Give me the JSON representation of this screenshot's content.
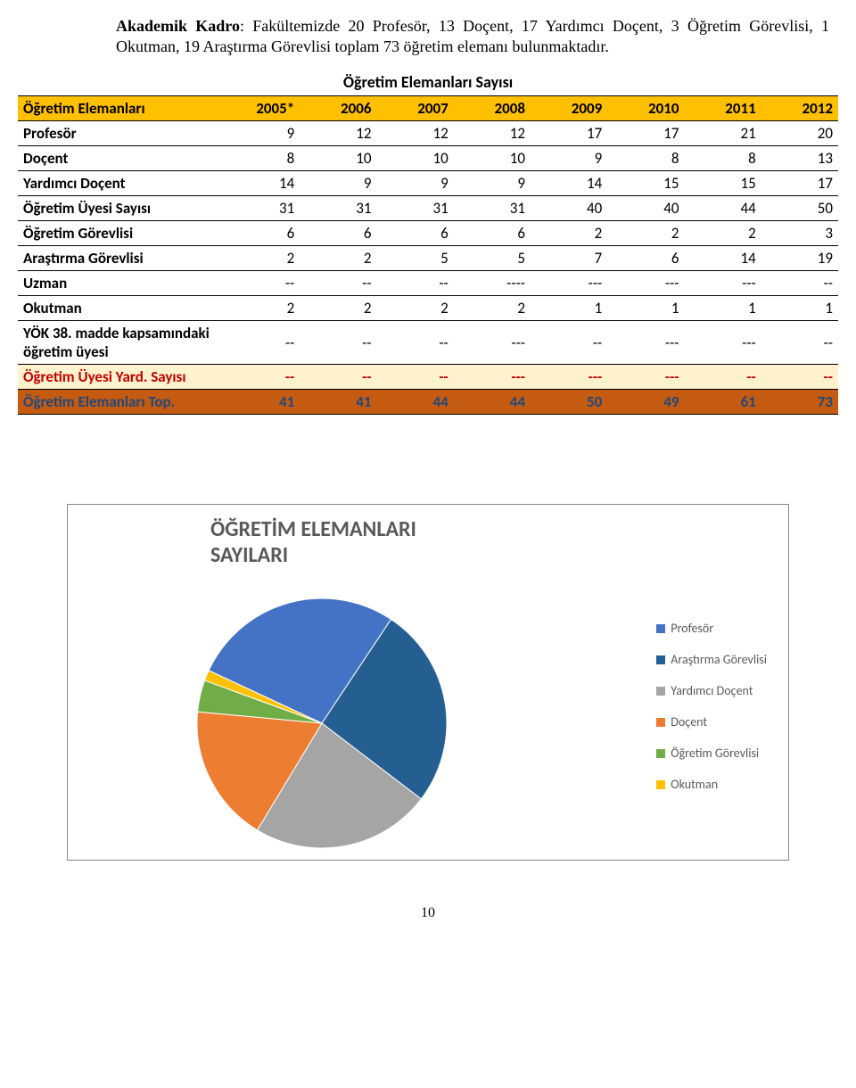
{
  "intro": {
    "label": "Akademik Kadro",
    "text": ": Fakültemizde 20 Profesör, 13 Doçent, 17 Yardımcı Doçent, 3 Öğretim Görevlisi, 1 Okutman, 19 Araştırma Görevlisi toplam 73 öğretim elemanı bulunmaktadır."
  },
  "table": {
    "title": "Öğretim Elemanları Sayısı",
    "header_label": "Öğretim Elemanları",
    "years": [
      "2005*",
      "2006",
      "2007",
      "2008",
      "2009",
      "2010",
      "2011",
      "2012"
    ],
    "rows": [
      {
        "label": "Profesör",
        "cells": [
          "9",
          "12",
          "12",
          "12",
          "17",
          "17",
          "21",
          "20"
        ]
      },
      {
        "label": "Doçent",
        "cells": [
          "8",
          "10",
          "10",
          "10",
          "9",
          "8",
          "8",
          "13"
        ]
      },
      {
        "label": "Yardımcı Doçent",
        "cells": [
          "14",
          "9",
          "9",
          "9",
          "14",
          "15",
          "15",
          "17"
        ]
      },
      {
        "label": "Öğretim Üyesi Sayısı",
        "cells": [
          "31",
          "31",
          "31",
          "31",
          "40",
          "40",
          "44",
          "50"
        ]
      },
      {
        "label": "Öğretim Görevlisi",
        "cells": [
          "6",
          "6",
          "6",
          "6",
          "2",
          "2",
          "2",
          "3"
        ]
      },
      {
        "label": "Araştırma Görevlisi",
        "cells": [
          "2",
          "2",
          "5",
          "5",
          "7",
          "6",
          "14",
          "19"
        ]
      },
      {
        "label": "Uzman",
        "cells": [
          "--",
          "--",
          "--",
          "----",
          "---",
          "---",
          "---",
          "--"
        ]
      },
      {
        "label": "Okutman",
        "cells": [
          "2",
          "2",
          "2",
          "2",
          "1",
          "1",
          "1",
          "1"
        ]
      },
      {
        "label": "YÖK 38. madde kapsamındaki öğretim üyesi",
        "cells": [
          "--",
          "--",
          "--",
          "---",
          "--",
          "---",
          "---",
          "--"
        ],
        "tall": true
      },
      {
        "label": "Öğretim Üyesi Yard. Sayısı",
        "cells": [
          "--",
          "--",
          "--",
          "---",
          "---",
          "---",
          "--",
          "--"
        ]
      },
      {
        "label": "Öğretim Elemanları Top.",
        "cells": [
          "41",
          "41",
          "44",
          "44",
          "50",
          "49",
          "61",
          "73"
        ]
      }
    ]
  },
  "chart": {
    "title_line1": "ÖĞRETİM ELEMANLARI",
    "title_line2": "SAYILARI",
    "legend": [
      {
        "label": "Profesör",
        "color": "#4472c4"
      },
      {
        "label": "Araştırma Görevlisi",
        "color": "#255e91"
      },
      {
        "label": "Yardımcı Doçent",
        "color": "#a5a5a5"
      },
      {
        "label": "Doçent",
        "color": "#ed7d31"
      },
      {
        "label": "Öğretim Görevlisi",
        "color": "#70ad47"
      },
      {
        "label": "Okutman",
        "color": "#ffc000"
      }
    ],
    "slices": [
      {
        "value": 20,
        "color": "#4472c4"
      },
      {
        "value": 19,
        "color": "#255e91"
      },
      {
        "value": 17,
        "color": "#a5a5a5"
      },
      {
        "value": 13,
        "color": "#ed7d31"
      },
      {
        "value": 3,
        "color": "#70ad47"
      },
      {
        "value": 1,
        "color": "#ffc000"
      }
    ],
    "radius": 140,
    "stroke": "#ffffff",
    "stroke_width": 1
  },
  "page_number": "10"
}
